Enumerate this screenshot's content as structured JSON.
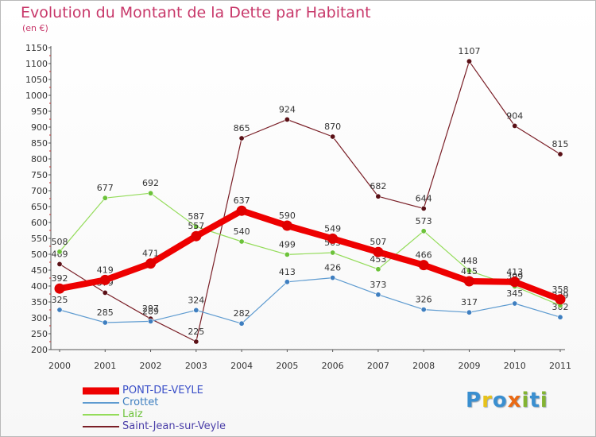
{
  "title": "Evolution du Montant de la Dette par Habitant",
  "subtitle": "(en €)",
  "logo": {
    "letters": [
      "P",
      "r",
      "o",
      "x",
      "i",
      "t",
      "i"
    ],
    "colors": [
      "#3a8fd0",
      "#e7c21a",
      "#3a8fd0",
      "#ea6a14",
      "#83b332",
      "#3a8fd0",
      "#83b332"
    ]
  },
  "chart_data": {
    "type": "line",
    "title": "Evolution du Montant de la Dette par Habitant",
    "ylabel": "(en €)",
    "x": [
      "2000",
      "2001",
      "2002",
      "2003",
      "2004",
      "2005",
      "2006",
      "2007",
      "2008",
      "2009",
      "2010",
      "2011"
    ],
    "ylim": [
      200,
      1150
    ],
    "yticks": [
      200,
      250,
      300,
      350,
      400,
      450,
      500,
      550,
      600,
      650,
      700,
      750,
      800,
      850,
      900,
      950,
      1000,
      1050,
      1100,
      1150
    ],
    "grid": false,
    "legend_position": "bottom-left",
    "series": [
      {
        "name": "Saint-Jean-sur-Veyle",
        "color": "#7a1f27",
        "marker": "#5a1016",
        "width": 1.2,
        "r": 3.2,
        "values": [
          469,
          379,
          297,
          225,
          865,
          924,
          870,
          682,
          644,
          1107,
          904,
          815
        ]
      },
      {
        "name": "Crottet",
        "color": "#5e9bd0",
        "marker": "#3f7fc0",
        "width": 1.2,
        "r": 3.2,
        "values": [
          325,
          285,
          289,
          324,
          282,
          413,
          426,
          373,
          326,
          317,
          345,
          302
        ]
      },
      {
        "name": "Laiz",
        "color": "#94dc5a",
        "marker": "#6cc23a",
        "width": 1.2,
        "r": 3.2,
        "values": [
          508,
          677,
          692,
          587,
          540,
          499,
          505,
          453,
          573,
          448,
          399,
          339
        ]
      },
      {
        "name": "PONT-DE-VEYLE",
        "color": "#ee0000",
        "marker": "#e00000",
        "width": 8,
        "r": 6.5,
        "values": [
          392,
          419,
          471,
          557,
          637,
          590,
          549,
          507,
          466,
          415,
          413,
          358
        ]
      }
    ]
  }
}
